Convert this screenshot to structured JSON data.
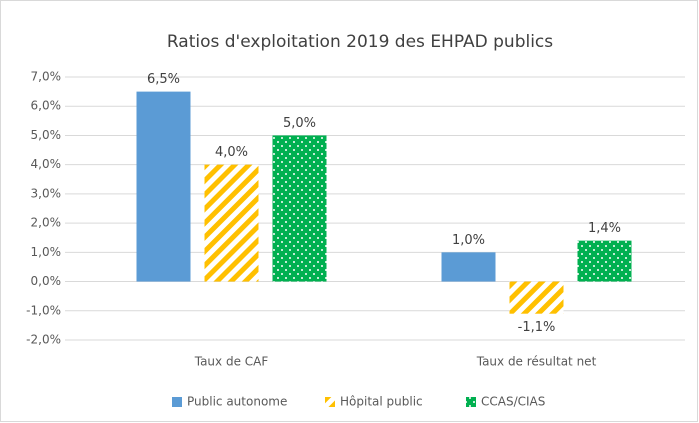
{
  "chart_data": {
    "type": "bar",
    "title": "Ratios d'exploitation 2019 des EHPAD publics",
    "categories": [
      "Taux de CAF",
      "Taux de résultat net"
    ],
    "series": [
      {
        "name": "Public autonome",
        "color": "#5b9bd5",
        "values": [
          6.5,
          1.0
        ],
        "value_labels": [
          "6,5%",
          "1,0%"
        ]
      },
      {
        "name": "Hôpital public",
        "color": "#ffc000",
        "pattern": "diagonal",
        "values": [
          4.0,
          -1.1
        ],
        "value_labels": [
          "4,0%",
          "-1,1%"
        ]
      },
      {
        "name": "CCAS/CIAS",
        "color": "#00b050",
        "pattern": "dots",
        "values": [
          5.0,
          1.4
        ],
        "value_labels": [
          "5,0%",
          "1,4%"
        ]
      }
    ],
    "ylim": [
      -2,
      7
    ],
    "yticks": [
      {
        "value": -2,
        "label": "-2,0%"
      },
      {
        "value": -1,
        "label": "-1,0%"
      },
      {
        "value": 0,
        "label": "0,0%"
      },
      {
        "value": 1,
        "label": "1,0%"
      },
      {
        "value": 2,
        "label": "2,0%"
      },
      {
        "value": 3,
        "label": "3,0%"
      },
      {
        "value": 4,
        "label": "4,0%"
      },
      {
        "value": 5,
        "label": "5,0%"
      },
      {
        "value": 6,
        "label": "6,0%"
      },
      {
        "value": 7,
        "label": "7,0%"
      }
    ],
    "grid": true,
    "legend": "bottom"
  }
}
